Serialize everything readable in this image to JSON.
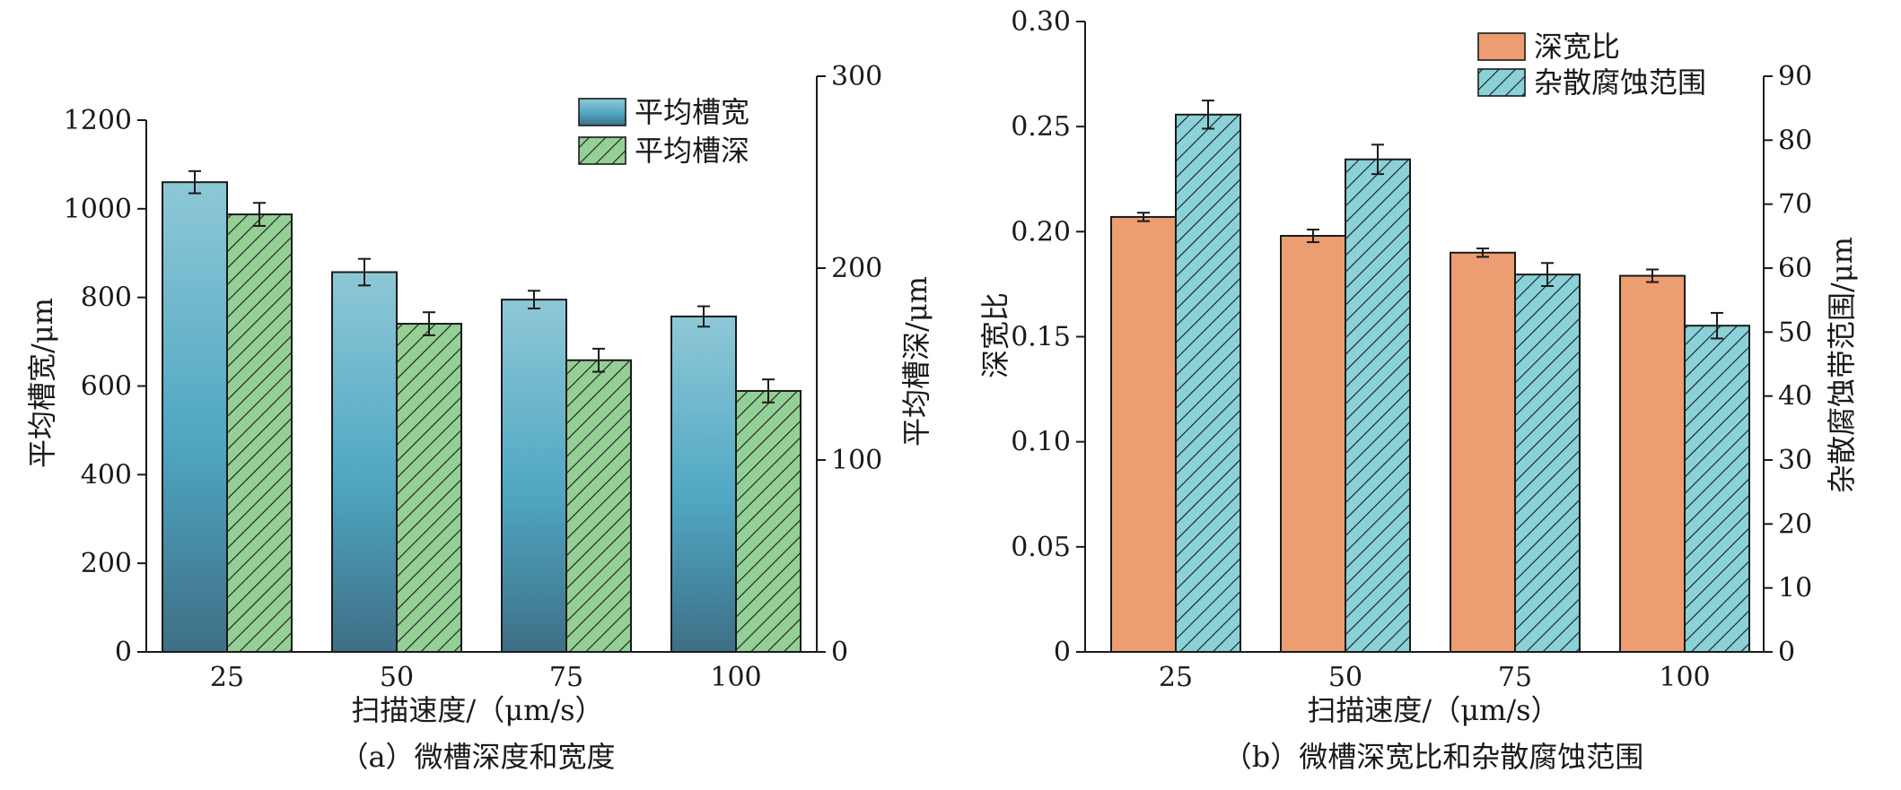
{
  "chart_data": [
    {
      "type": "bar",
      "caption": "（a）微槽深度和宽度",
      "categories": [
        "25",
        "50",
        "75",
        "100"
      ],
      "xlabel": "扫描速度/（μm/s）",
      "ylabel": "平均槽宽/μm",
      "y2label": "平均槽深/μm",
      "ylim": [
        0,
        1200
      ],
      "y2lim": [
        0,
        300
      ],
      "yticks": [
        "0",
        "200",
        "400",
        "600",
        "800",
        "1000",
        "1200"
      ],
      "y2ticks": [
        "0",
        "100",
        "200",
        "300"
      ],
      "legend_position": "top-right",
      "series": [
        {
          "name": "平均槽宽",
          "axis": "left",
          "values": [
            1060,
            857,
            795,
            757
          ],
          "errors": [
            25,
            30,
            20,
            23
          ],
          "style": "gradient-blue"
        },
        {
          "name": "平均槽深",
          "axis": "right",
          "values": [
            228,
            171,
            152,
            136
          ],
          "errors": [
            6,
            6,
            6,
            6
          ],
          "style": "hatch-green"
        }
      ]
    },
    {
      "type": "bar",
      "caption": "（b）微槽深宽比和杂散腐蚀范围",
      "categories": [
        "25",
        "50",
        "75",
        "100"
      ],
      "xlabel": "扫描速度/（μm/s）",
      "ylabel": "深宽比",
      "y2label": "杂散腐蚀带范围/μm",
      "ylim": [
        0,
        0.3
      ],
      "y2lim": [
        0,
        90
      ],
      "yticks": [
        "0",
        "0.05",
        "0.10",
        "0.15",
        "0.20",
        "0.25",
        "0.30"
      ],
      "y2ticks": [
        "0",
        "10",
        "20",
        "30",
        "40",
        "50",
        "60",
        "70",
        "80",
        "90"
      ],
      "legend_position": "top-right",
      "series": [
        {
          "name": "深宽比",
          "axis": "left",
          "values": [
            0.207,
            0.198,
            0.19,
            0.179
          ],
          "errors": [
            0.002,
            0.003,
            0.002,
            0.003
          ],
          "style": "solid-orange"
        },
        {
          "name": "杂散腐蚀范围",
          "axis": "right",
          "values": [
            84,
            77,
            59,
            51
          ],
          "errors": [
            2.2,
            2.3,
            1.8,
            2.0
          ],
          "style": "hatch-cyan"
        }
      ]
    }
  ],
  "colors": {
    "gradient_dark": "#3e6f86",
    "gradient_mid": "#4fa7c2",
    "gradient_light": "#8ec8d7",
    "green": "#94cf95",
    "orange": "#ec9d72",
    "cyan": "#8ad1d8",
    "ink": "#1a1a1a"
  }
}
